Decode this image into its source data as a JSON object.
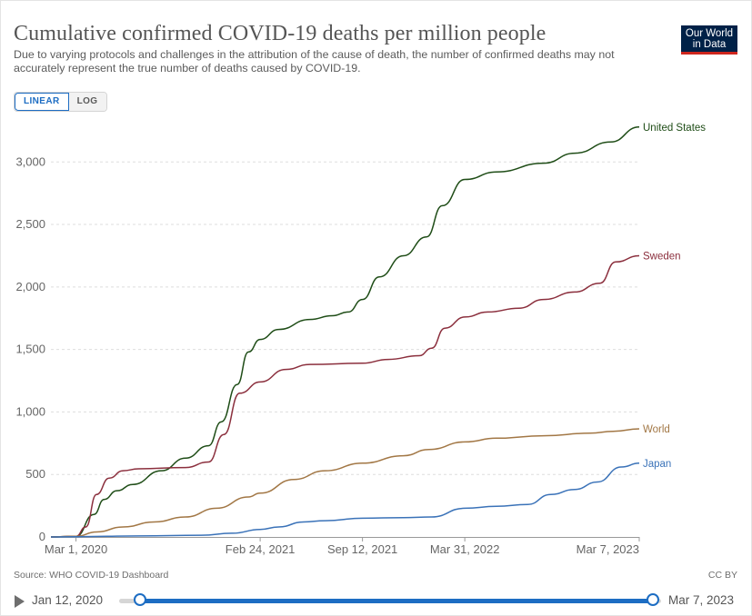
{
  "header": {
    "title": "Cumulative confirmed COVID-19 deaths per million people",
    "subtitle": "Due to varying protocols and challenges in the attribution of the cause of death, the number of confirmed deaths may not accurately represent the true number of deaths caused by COVID-19.",
    "logo_line1": "Our World",
    "logo_line2": "in Data"
  },
  "controls": {
    "linear_label": "LINEAR",
    "log_label": "LOG",
    "selected_scale": "linear"
  },
  "footer": {
    "source": "Source: WHO COVID-19 Dashboard",
    "license": "CC BY"
  },
  "timeline": {
    "start_label": "Jan 12, 2020",
    "end_label": "Mar 7, 2023",
    "selection_fraction": [
      0.04,
      1.0
    ]
  },
  "colors": {
    "accent": "#1d6dc3",
    "united_states": "#1f4d17",
    "sweden": "#8b2f3d",
    "world": "#a27745",
    "japan": "#3a72b8",
    "grid": "#dddddd",
    "logo_bg": "#002147"
  },
  "chart_data": {
    "type": "line",
    "title": "Cumulative confirmed COVID-19 deaths per million people",
    "xlabel": "",
    "ylabel": "",
    "x_range": [
      "2020-01-12",
      "2023-03-07"
    ],
    "ylim": [
      0,
      3300
    ],
    "y_ticks": [
      0,
      500,
      1000,
      1500,
      2000,
      2500,
      3000
    ],
    "y_tick_labels": [
      "0",
      "500",
      "1,000",
      "1,500",
      "2,000",
      "2,500",
      "3,000"
    ],
    "x_ticks": [
      "2020-03-01",
      "2021-02-24",
      "2021-09-12",
      "2022-03-31",
      "2023-03-07"
    ],
    "x_tick_labels": [
      "Mar 1, 2020",
      "Feb 24, 2021",
      "Sep 12, 2021",
      "Mar 31, 2022",
      "Mar 7, 2023"
    ],
    "grid": "horizontal-dashed",
    "legend": "line-end labels",
    "series": [
      {
        "name": "United States",
        "color": "#1f4d17",
        "points": [
          [
            "2020-01-12",
            0
          ],
          [
            "2020-03-01",
            5
          ],
          [
            "2020-04-05",
            180
          ],
          [
            "2020-04-25",
            300
          ],
          [
            "2020-05-20",
            370
          ],
          [
            "2020-06-20",
            420
          ],
          [
            "2020-08-15",
            530
          ],
          [
            "2020-10-01",
            630
          ],
          [
            "2020-11-15",
            730
          ],
          [
            "2020-12-10",
            920
          ],
          [
            "2021-01-10",
            1220
          ],
          [
            "2021-02-01",
            1480
          ],
          [
            "2021-02-24",
            1580
          ],
          [
            "2021-04-01",
            1660
          ],
          [
            "2021-06-01",
            1740
          ],
          [
            "2021-07-15",
            1770
          ],
          [
            "2021-08-15",
            1800
          ],
          [
            "2021-09-12",
            1900
          ],
          [
            "2021-10-15",
            2080
          ],
          [
            "2021-12-01",
            2250
          ],
          [
            "2022-01-15",
            2400
          ],
          [
            "2022-02-15",
            2650
          ],
          [
            "2022-03-31",
            2860
          ],
          [
            "2022-06-01",
            2920
          ],
          [
            "2022-09-01",
            2990
          ],
          [
            "2022-11-01",
            3070
          ],
          [
            "2023-01-10",
            3160
          ],
          [
            "2023-03-07",
            3280
          ]
        ]
      },
      {
        "name": "Sweden",
        "color": "#8b2f3d",
        "points": [
          [
            "2020-01-12",
            0
          ],
          [
            "2020-03-01",
            5
          ],
          [
            "2020-03-20",
            80
          ],
          [
            "2020-04-10",
            340
          ],
          [
            "2020-05-05",
            470
          ],
          [
            "2020-06-01",
            530
          ],
          [
            "2020-07-01",
            545
          ],
          [
            "2020-10-01",
            555
          ],
          [
            "2020-11-15",
            600
          ],
          [
            "2020-12-15",
            820
          ],
          [
            "2021-01-15",
            1150
          ],
          [
            "2021-02-24",
            1240
          ],
          [
            "2021-04-15",
            1340
          ],
          [
            "2021-06-01",
            1380
          ],
          [
            "2021-09-12",
            1390
          ],
          [
            "2021-11-01",
            1420
          ],
          [
            "2022-01-01",
            1450
          ],
          [
            "2022-01-25",
            1510
          ],
          [
            "2022-02-20",
            1670
          ],
          [
            "2022-03-31",
            1760
          ],
          [
            "2022-05-15",
            1800
          ],
          [
            "2022-07-15",
            1830
          ],
          [
            "2022-09-01",
            1900
          ],
          [
            "2022-11-01",
            1960
          ],
          [
            "2022-12-20",
            2030
          ],
          [
            "2023-01-20",
            2200
          ],
          [
            "2023-03-07",
            2250
          ]
        ]
      },
      {
        "name": "World",
        "color": "#a27745",
        "points": [
          [
            "2020-01-12",
            0
          ],
          [
            "2020-03-01",
            5
          ],
          [
            "2020-04-10",
            40
          ],
          [
            "2020-06-01",
            80
          ],
          [
            "2020-08-01",
            120
          ],
          [
            "2020-10-01",
            160
          ],
          [
            "2020-12-01",
            230
          ],
          [
            "2021-02-01",
            320
          ],
          [
            "2021-02-24",
            350
          ],
          [
            "2021-05-01",
            460
          ],
          [
            "2021-07-01",
            530
          ],
          [
            "2021-09-12",
            590
          ],
          [
            "2021-12-01",
            650
          ],
          [
            "2022-01-20",
            700
          ],
          [
            "2022-03-31",
            760
          ],
          [
            "2022-06-01",
            790
          ],
          [
            "2022-09-01",
            810
          ],
          [
            "2022-12-01",
            830
          ],
          [
            "2023-01-15",
            845
          ],
          [
            "2023-03-07",
            865
          ]
        ]
      },
      {
        "name": "Japan",
        "color": "#3a72b8",
        "points": [
          [
            "2020-01-12",
            0
          ],
          [
            "2020-03-01",
            2
          ],
          [
            "2020-07-01",
            8
          ],
          [
            "2020-11-01",
            14
          ],
          [
            "2021-01-01",
            30
          ],
          [
            "2021-02-24",
            60
          ],
          [
            "2021-04-01",
            80
          ],
          [
            "2021-05-20",
            120
          ],
          [
            "2021-07-01",
            130
          ],
          [
            "2021-09-12",
            150
          ],
          [
            "2021-12-01",
            155
          ],
          [
            "2022-01-25",
            160
          ],
          [
            "2022-03-31",
            230
          ],
          [
            "2022-06-01",
            245
          ],
          [
            "2022-08-01",
            260
          ],
          [
            "2022-09-15",
            340
          ],
          [
            "2022-11-01",
            380
          ],
          [
            "2022-12-15",
            440
          ],
          [
            "2023-01-31",
            560
          ],
          [
            "2023-03-07",
            590
          ]
        ]
      }
    ]
  }
}
